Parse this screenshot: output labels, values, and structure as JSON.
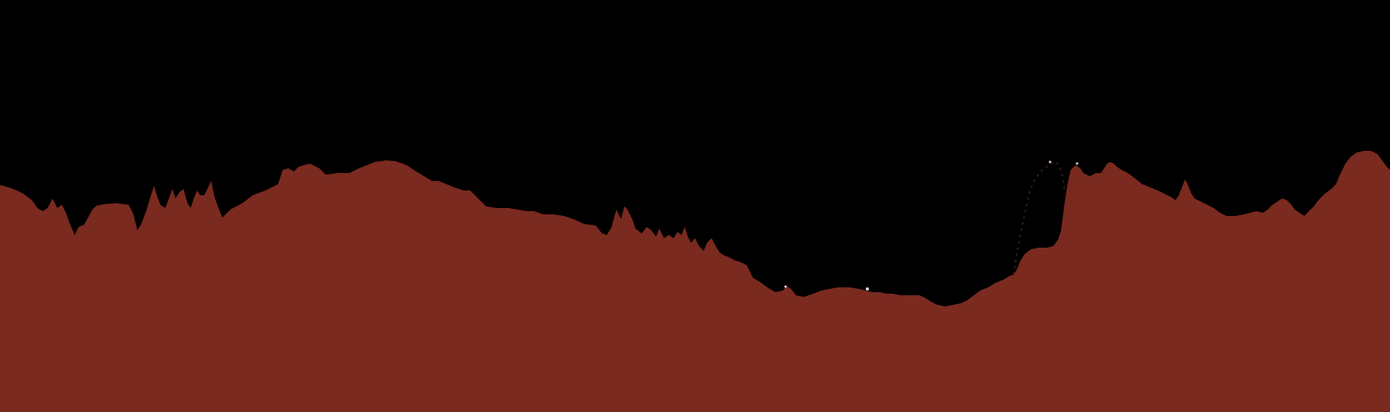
{
  "colors": {
    "background": "#000000",
    "fill": "#7a2a1f"
  }
}
